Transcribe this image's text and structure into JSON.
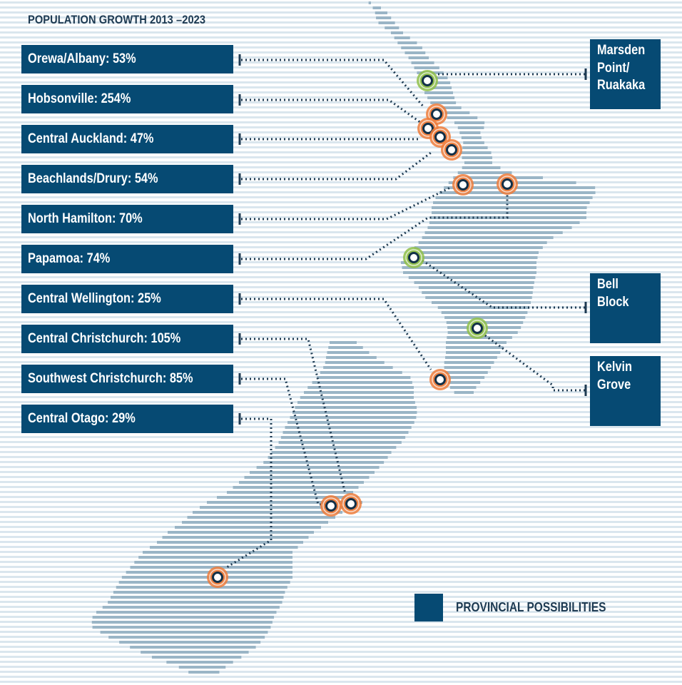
{
  "title": "POPULATION GROWTH 2013 –2023",
  "growth_areas": [
    {
      "label": "Orewa/Albany: 53%",
      "value": 53
    },
    {
      "label": "Hobsonville: 254%",
      "value": 254
    },
    {
      "label": "Central Auckland: 47%",
      "value": 47
    },
    {
      "label": "Beachlands/Drury: 54%",
      "value": 54
    },
    {
      "label": "North Hamilton: 70%",
      "value": 70
    },
    {
      "label": "Papamoa: 74%",
      "value": 74
    },
    {
      "label": "Central Wellington: 25%",
      "value": 25
    },
    {
      "label": "Central Christchurch: 105%",
      "value": 105
    },
    {
      "label": "Southwest Christchurch: 85%",
      "value": 85
    },
    {
      "label": "Central Otago: 29%",
      "value": 29
    }
  ],
  "provincial_possibilities": [
    {
      "label": "Marsden\nPoint/\nRuakaka"
    },
    {
      "label": "Bell\nBlock"
    },
    {
      "label": "Kelvin\nGrove"
    }
  ],
  "legend": {
    "label": "PROVINCIAL POSSIBILITIES"
  },
  "colors": {
    "label_box": "#064a73",
    "growth_marker": "#ee7d3b",
    "provincial_marker": "#8fbf49",
    "map": "#9ab5c6",
    "background_lines": "#dae6ee",
    "leader": "#1d3a52"
  }
}
